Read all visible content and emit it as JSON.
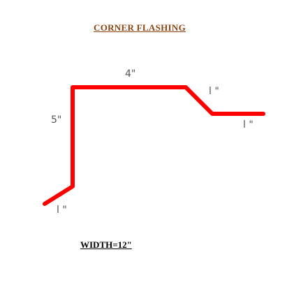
{
  "diagram": {
    "title": "CORNER  FLASHING",
    "dimensions": {
      "top": "4\"",
      "left": "5\"",
      "slope": "l \"",
      "right": "l \"",
      "bottom": "l \""
    },
    "width_label": "WIDTH=12\"",
    "profile_color": "#ff0000"
  }
}
